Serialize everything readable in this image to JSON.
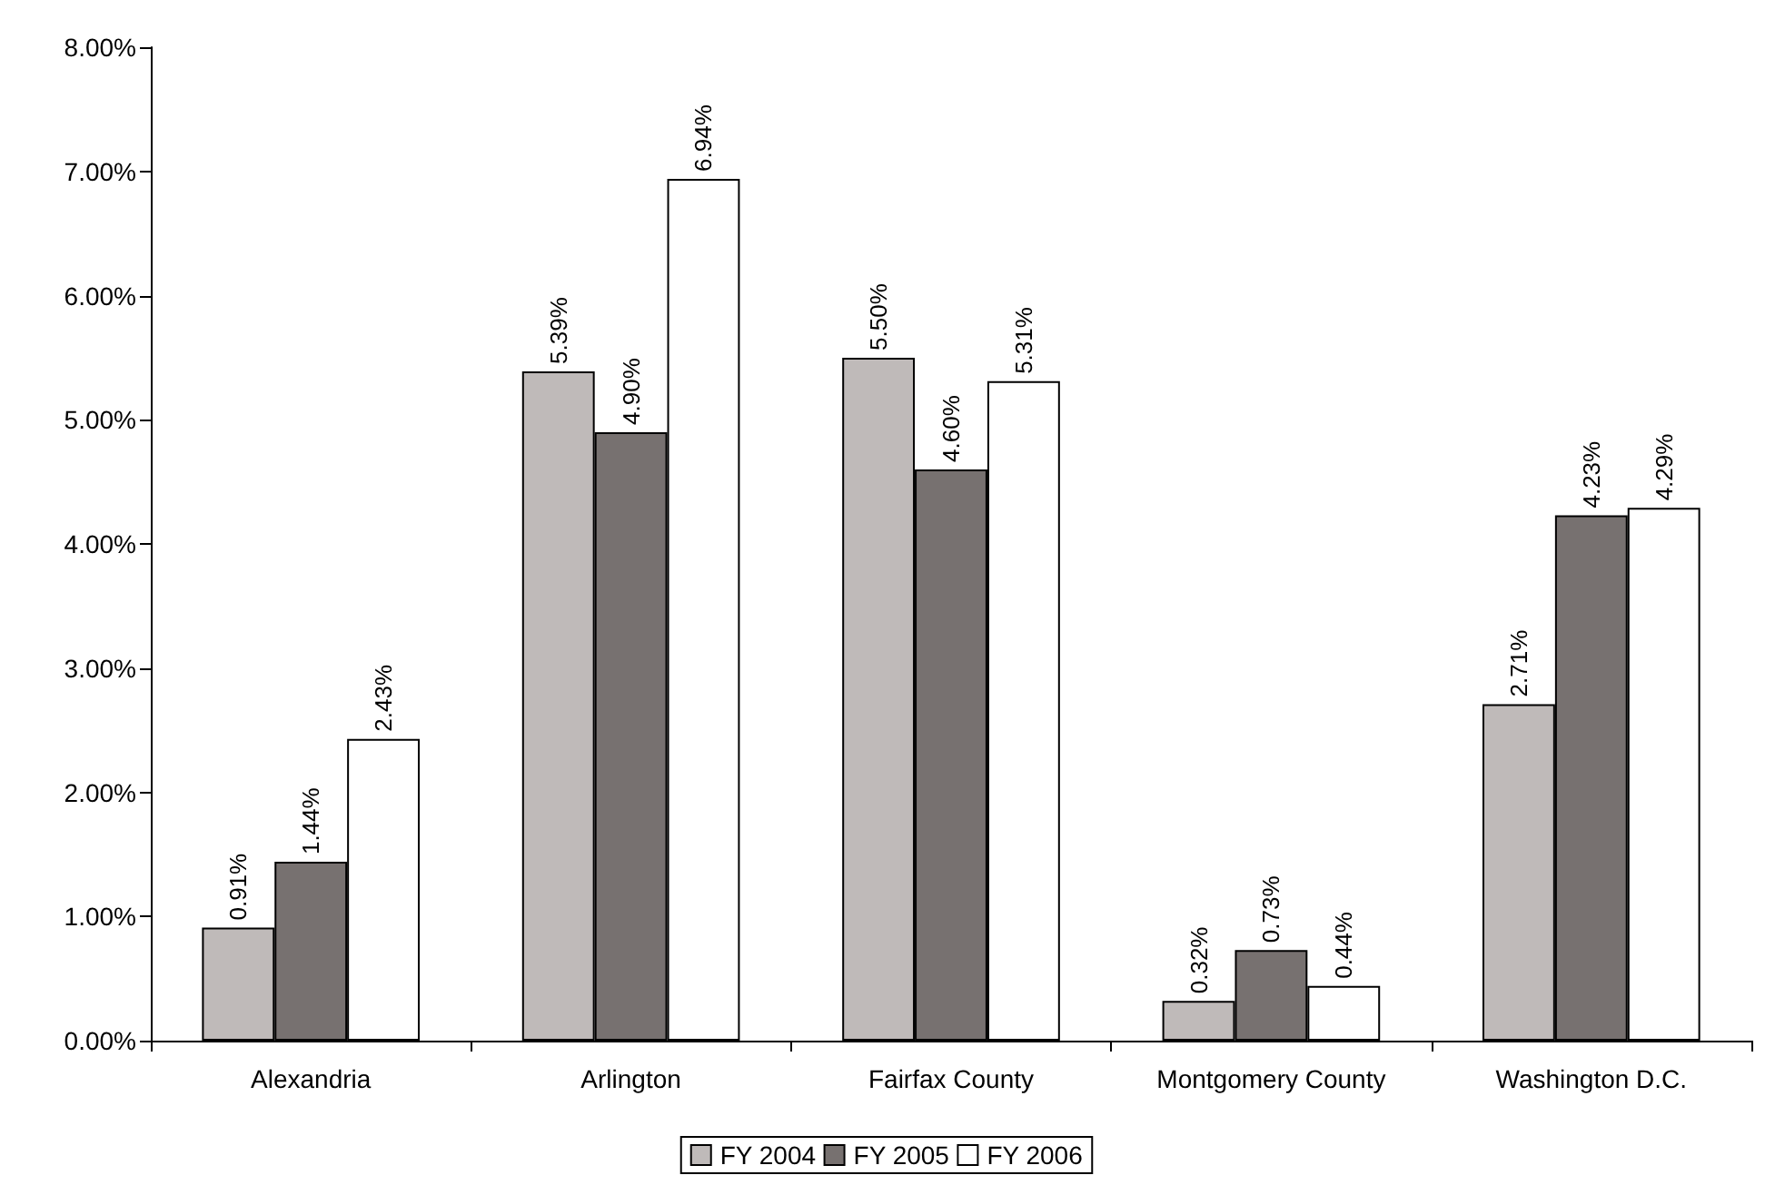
{
  "chart_data": {
    "type": "bar",
    "categories": [
      "Alexandria",
      "Arlington",
      "Fairfax County",
      "Montgomery County",
      "Washington D.C."
    ],
    "series": [
      {
        "name": "FY 2004",
        "color": "#bfbab9",
        "values": [
          0.91,
          5.39,
          5.5,
          0.32,
          2.71
        ],
        "value_labels": [
          "0.91%",
          "5.39%",
          "5.50%",
          "0.32%",
          "2.71%"
        ]
      },
      {
        "name": "FY 2005",
        "color": "#777170",
        "values": [
          1.44,
          4.9,
          4.6,
          0.73,
          4.23
        ],
        "value_labels": [
          "1.44%",
          "4.90%",
          "4.60%",
          "0.73%",
          "4.23%"
        ]
      },
      {
        "name": "FY 2006",
        "color": "#ffffff",
        "values": [
          2.43,
          6.94,
          5.31,
          0.44,
          4.29
        ],
        "value_labels": [
          "2.43%",
          "6.94%",
          "5.31%",
          "0.44%",
          "4.29%"
        ]
      }
    ],
    "ylim": [
      0,
      8
    ],
    "yticks": [
      {
        "value": 0,
        "label": "0.00%"
      },
      {
        "value": 1,
        "label": "1.00%"
      },
      {
        "value": 2,
        "label": "2.00%"
      },
      {
        "value": 3,
        "label": "3.00%"
      },
      {
        "value": 4,
        "label": "4.00%"
      },
      {
        "value": 5,
        "label": "5.00%"
      },
      {
        "value": 6,
        "label": "6.00%"
      },
      {
        "value": 7,
        "label": "7.00%"
      },
      {
        "value": 8,
        "label": "8.00%"
      }
    ],
    "grid": false,
    "legend": "bottom"
  }
}
